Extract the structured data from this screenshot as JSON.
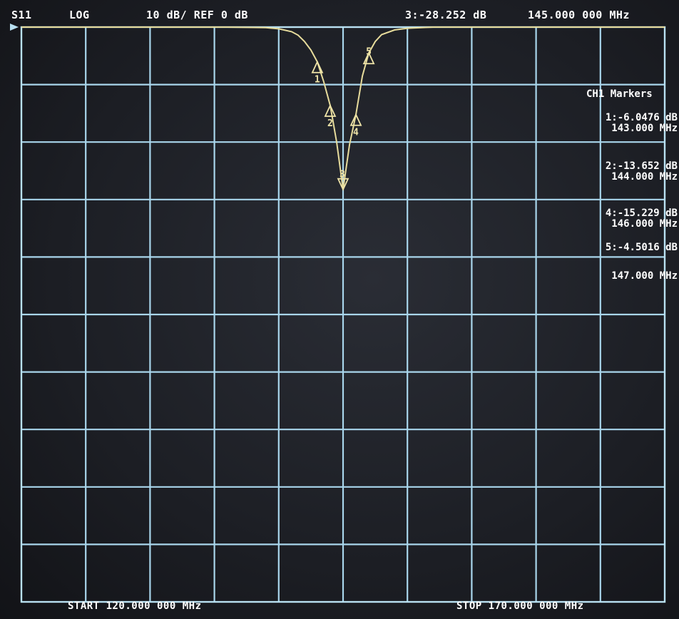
{
  "header": {
    "param": "S11",
    "format": "LOG",
    "scale": "10 dB/ REF 0 dB",
    "active_marker": "3:-28.252 dB",
    "active_freq": "145.000 000 MHz"
  },
  "footer": {
    "start": "START 120.000 000 MHz",
    "stop": "STOP 170.000 000 MHz"
  },
  "markers_panel": {
    "title": "CH1 Markers",
    "lines": [
      "1:-6.0476 dB",
      "143.000 MHz",
      "2:-13.652 dB",
      "144.000 MHz",
      "4:-15.229 dB",
      "146.000 MHz",
      "5:-4.5016 dB",
      "147.000 MHz"
    ]
  },
  "colors": {
    "grid": "#a9d6ec",
    "trace": "#e7dc9c",
    "text": "#ffffff",
    "background": "#1f2127"
  },
  "chart_data": {
    "type": "line",
    "title": "",
    "xlabel": "",
    "ylabel": "",
    "x_unit": "MHz",
    "y_unit": "dB",
    "xlim": [
      120,
      170
    ],
    "ylim": [
      -100,
      0
    ],
    "grid": true,
    "divisions": {
      "x": 10,
      "y": 10
    },
    "series": [
      {
        "x": [
          120,
          130,
          136,
          139,
          140,
          141,
          141.5,
          142,
          142.5,
          143,
          143.5,
          144,
          144.5,
          145,
          145.5,
          146,
          146.5,
          147,
          147.5,
          148,
          149,
          150,
          152,
          160,
          170
        ],
        "y": [
          0,
          0,
          0,
          -0.1,
          -0.3,
          -0.8,
          -1.4,
          -2.5,
          -4,
          -6.05,
          -9.5,
          -13.65,
          -20,
          -28.25,
          -20.5,
          -15.23,
          -8.5,
          -4.5,
          -2.5,
          -1.3,
          -0.5,
          -0.2,
          0,
          0,
          0
        ]
      }
    ],
    "markers": [
      {
        "id": "1",
        "x": 143,
        "y": -6.0476
      },
      {
        "id": "2",
        "x": 144,
        "y": -13.652
      },
      {
        "id": "3",
        "x": 145,
        "y": -28.252
      },
      {
        "id": "4",
        "x": 146,
        "y": -15.229
      },
      {
        "id": "5",
        "x": 147,
        "y": -4.5016
      }
    ]
  }
}
